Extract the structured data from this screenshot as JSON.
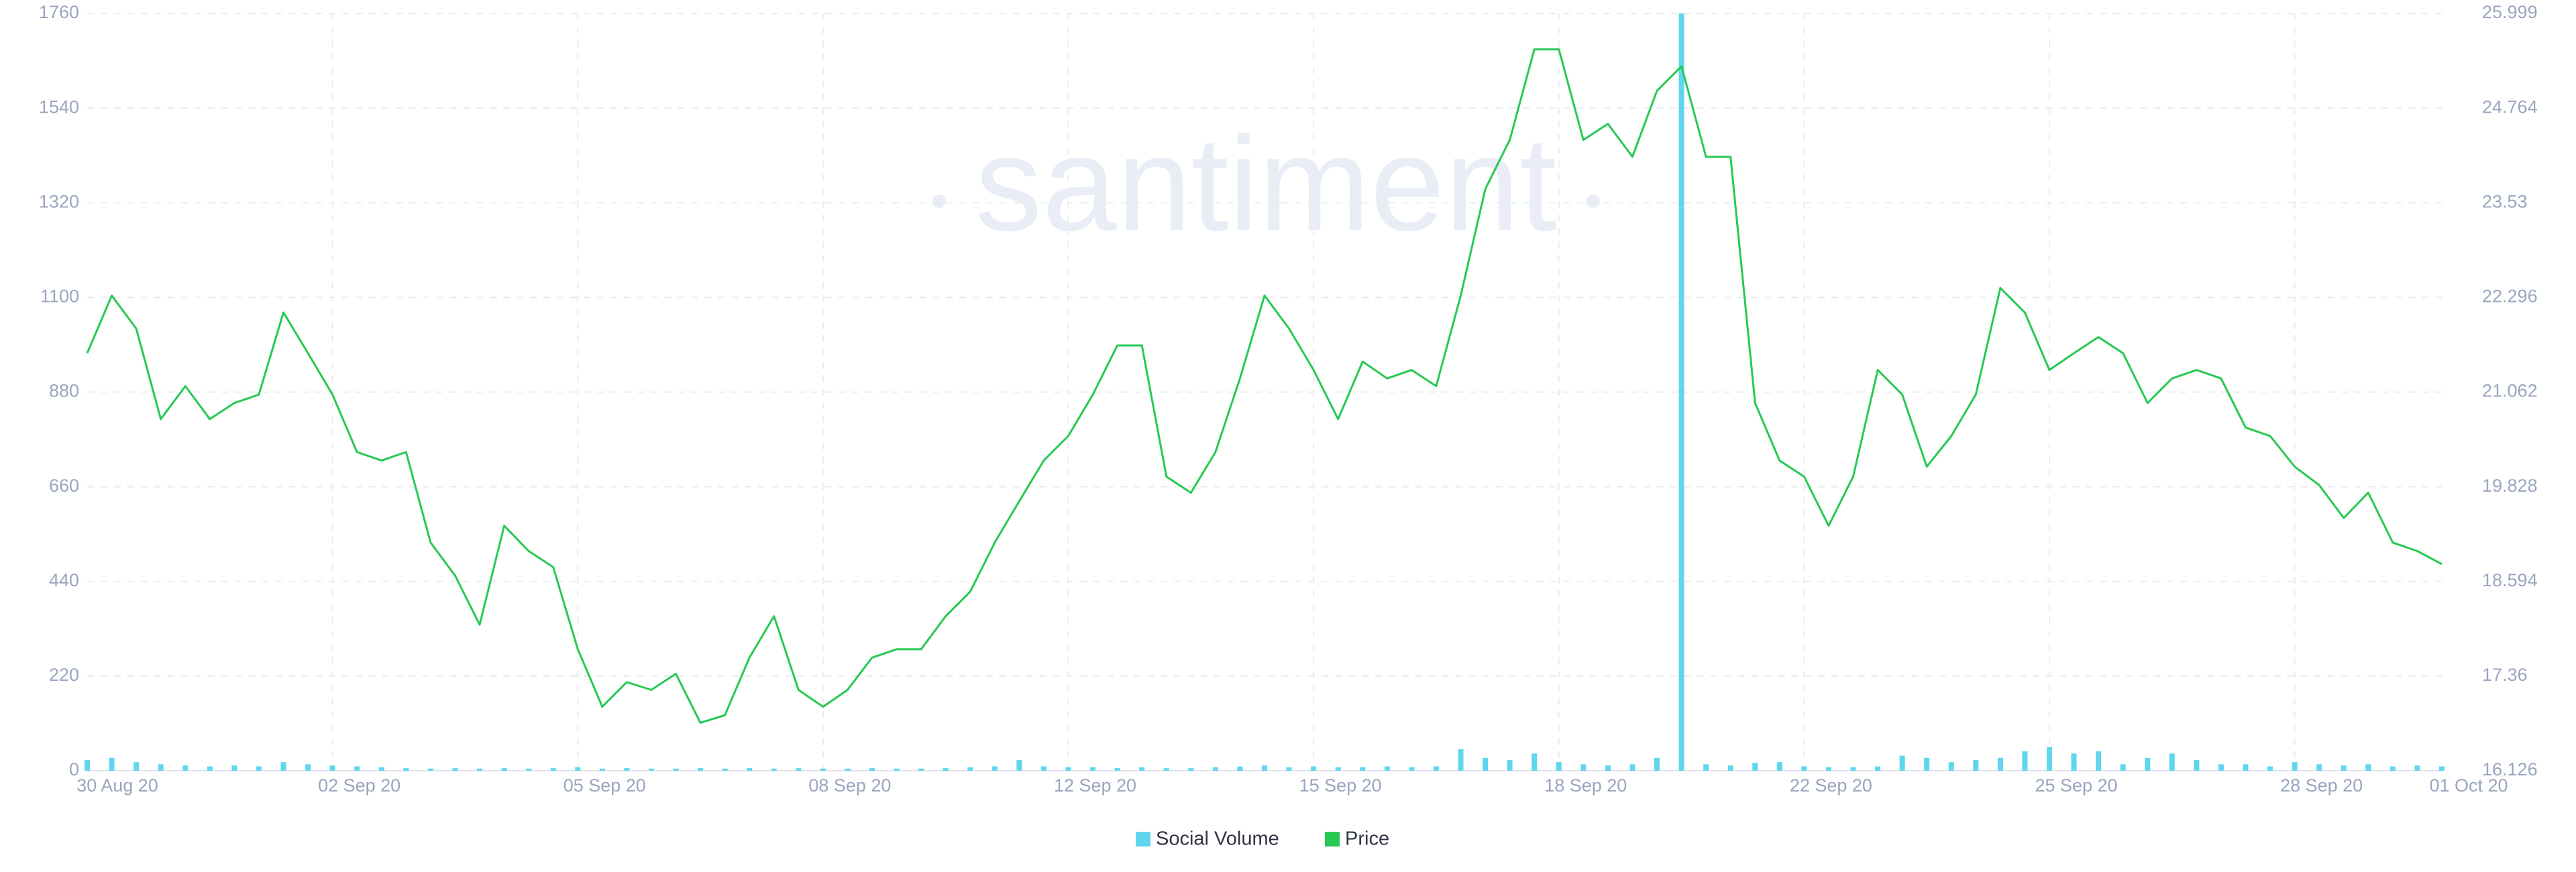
{
  "chart_data": {
    "type": "bar-line",
    "watermark": "santiment",
    "categories": [
      "30 Aug 20",
      null,
      null,
      null,
      null,
      null,
      null,
      null,
      null,
      null,
      "02 Sep 20",
      null,
      null,
      null,
      null,
      null,
      null,
      null,
      null,
      null,
      "05 Sep 20",
      null,
      null,
      null,
      null,
      null,
      null,
      null,
      null,
      null,
      "08 Sep 20",
      null,
      null,
      null,
      null,
      null,
      null,
      null,
      null,
      null,
      "12 Sep 20",
      null,
      null,
      null,
      null,
      null,
      null,
      null,
      null,
      null,
      "15 Sep 20",
      null,
      null,
      null,
      null,
      null,
      null,
      null,
      null,
      null,
      "18 Sep 20",
      null,
      null,
      null,
      null,
      null,
      null,
      null,
      null,
      null,
      "22 Sep 20",
      null,
      null,
      null,
      null,
      null,
      null,
      null,
      null,
      null,
      "25 Sep 20",
      null,
      null,
      null,
      null,
      null,
      null,
      null,
      null,
      null,
      "28 Sep 20",
      null,
      null,
      null,
      null,
      null,
      "01 Oct 20"
    ],
    "series": [
      {
        "name": "Social Volume",
        "color": "#5fd6ee",
        "axis": "y",
        "values": [
          25,
          30,
          20,
          15,
          12,
          10,
          12,
          10,
          20,
          15,
          12,
          10,
          8,
          6,
          5,
          6,
          5,
          6,
          5,
          6,
          8,
          5,
          6,
          5,
          5,
          6,
          5,
          6,
          5,
          6,
          5,
          5,
          6,
          5,
          5,
          6,
          8,
          10,
          25,
          10,
          8,
          8,
          6,
          8,
          6,
          6,
          8,
          10,
          12,
          8,
          10,
          8,
          8,
          10,
          8,
          10,
          50,
          30,
          25,
          40,
          20,
          15,
          12,
          15,
          30,
          1760,
          15,
          12,
          18,
          20,
          10,
          8,
          8,
          10,
          35,
          30,
          20,
          25,
          30,
          45,
          55,
          40,
          45,
          15,
          30,
          40,
          25,
          15,
          15,
          10,
          20,
          15,
          12,
          15,
          10,
          12,
          10
        ]
      },
      {
        "name": "Price",
        "color": "#26c953",
        "axis": "y2",
        "values": [
          21.57,
          22.32,
          21.89,
          20.71,
          21.14,
          20.71,
          20.92,
          21.03,
          22.1,
          21.57,
          21.03,
          20.28,
          20.17,
          20.28,
          19.1,
          18.67,
          18.03,
          19.32,
          18.99,
          18.78,
          17.71,
          16.96,
          17.28,
          17.18,
          17.39,
          16.75,
          16.85,
          17.6,
          18.14,
          17.18,
          16.96,
          17.18,
          17.6,
          17.71,
          17.71,
          18.14,
          18.46,
          19.1,
          19.64,
          20.17,
          20.49,
          21.03,
          21.67,
          21.67,
          19.96,
          19.75,
          20.28,
          21.24,
          22.32,
          21.89,
          21.35,
          20.71,
          21.46,
          21.24,
          21.35,
          21.14,
          22.32,
          23.71,
          24.35,
          25.53,
          25.53,
          24.35,
          24.56,
          24.13,
          24.99,
          25.31,
          24.13,
          24.13,
          20.92,
          20.17,
          19.96,
          19.32,
          19.96,
          21.35,
          21.03,
          20.09,
          20.49,
          21.03,
          22.42,
          22.1,
          21.35,
          21.57,
          21.78,
          21.57,
          20.92,
          21.24,
          21.35,
          21.24,
          20.6,
          20.49,
          20.09,
          19.85,
          19.42,
          19.75,
          19.1,
          18.99,
          18.82
        ]
      }
    ],
    "ylim": [
      0,
      1760
    ],
    "yticks": [
      0,
      220,
      440,
      660,
      880,
      1100,
      1320,
      1540,
      1760
    ],
    "y2lim": [
      16.126,
      25.999
    ],
    "y2ticks": [
      16.126,
      17.36,
      18.594,
      19.828,
      21.062,
      22.296,
      23.53,
      24.764,
      25.999
    ],
    "grid": true,
    "legend": "bottom"
  }
}
